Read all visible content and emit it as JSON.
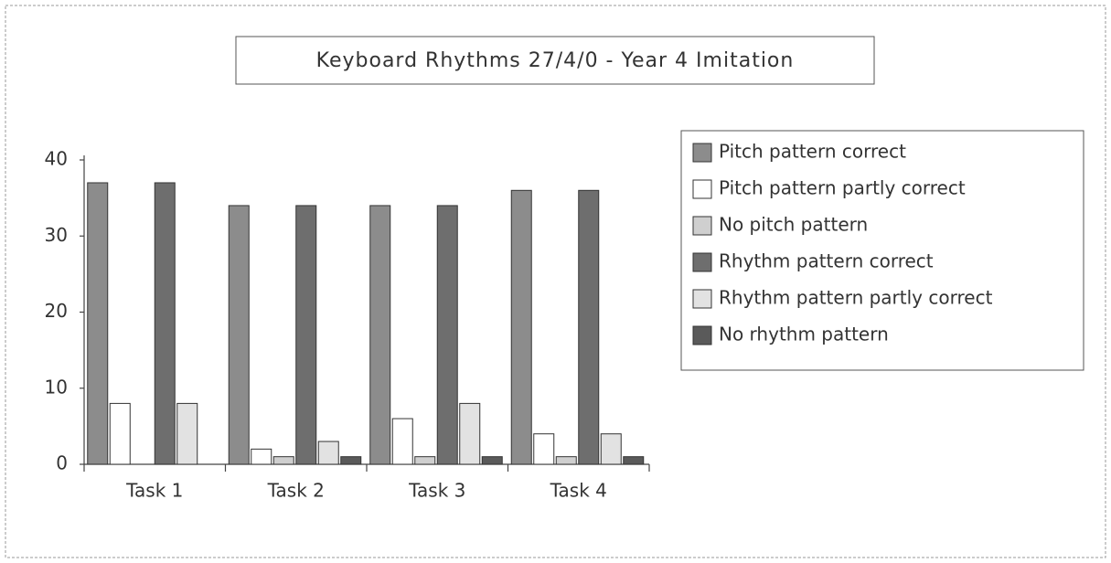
{
  "chart_data": {
    "type": "bar",
    "title": "Keyboard Rhythms 27/4/0 - Year 4  Imitation",
    "categories": [
      "Task 1",
      "Task 2",
      "Task 3",
      "Task 4"
    ],
    "series": [
      {
        "name": "Pitch pattern correct",
        "color": "#8c8c8c",
        "values": [
          37,
          34,
          34,
          36
        ]
      },
      {
        "name": "Pitch pattern partly correct",
        "color": "#ffffff",
        "values": [
          8,
          2,
          6,
          4
        ]
      },
      {
        "name": "No pitch pattern",
        "color": "#cfcfcf",
        "values": [
          0,
          1,
          1,
          1
        ]
      },
      {
        "name": "Rhythm pattern correct",
        "color": "#6e6e6e",
        "values": [
          37,
          34,
          34,
          36
        ]
      },
      {
        "name": "Rhythm pattern partly correct",
        "color": "#e2e2e2",
        "values": [
          8,
          3,
          8,
          4
        ]
      },
      {
        "name": "No rhythm pattern",
        "color": "#5a5a5a",
        "values": [
          0,
          1,
          1,
          1
        ]
      }
    ],
    "ylim": [
      0,
      40
    ],
    "yticks": [
      0,
      10,
      20,
      30,
      40
    ],
    "grid": false,
    "legend": "right"
  }
}
